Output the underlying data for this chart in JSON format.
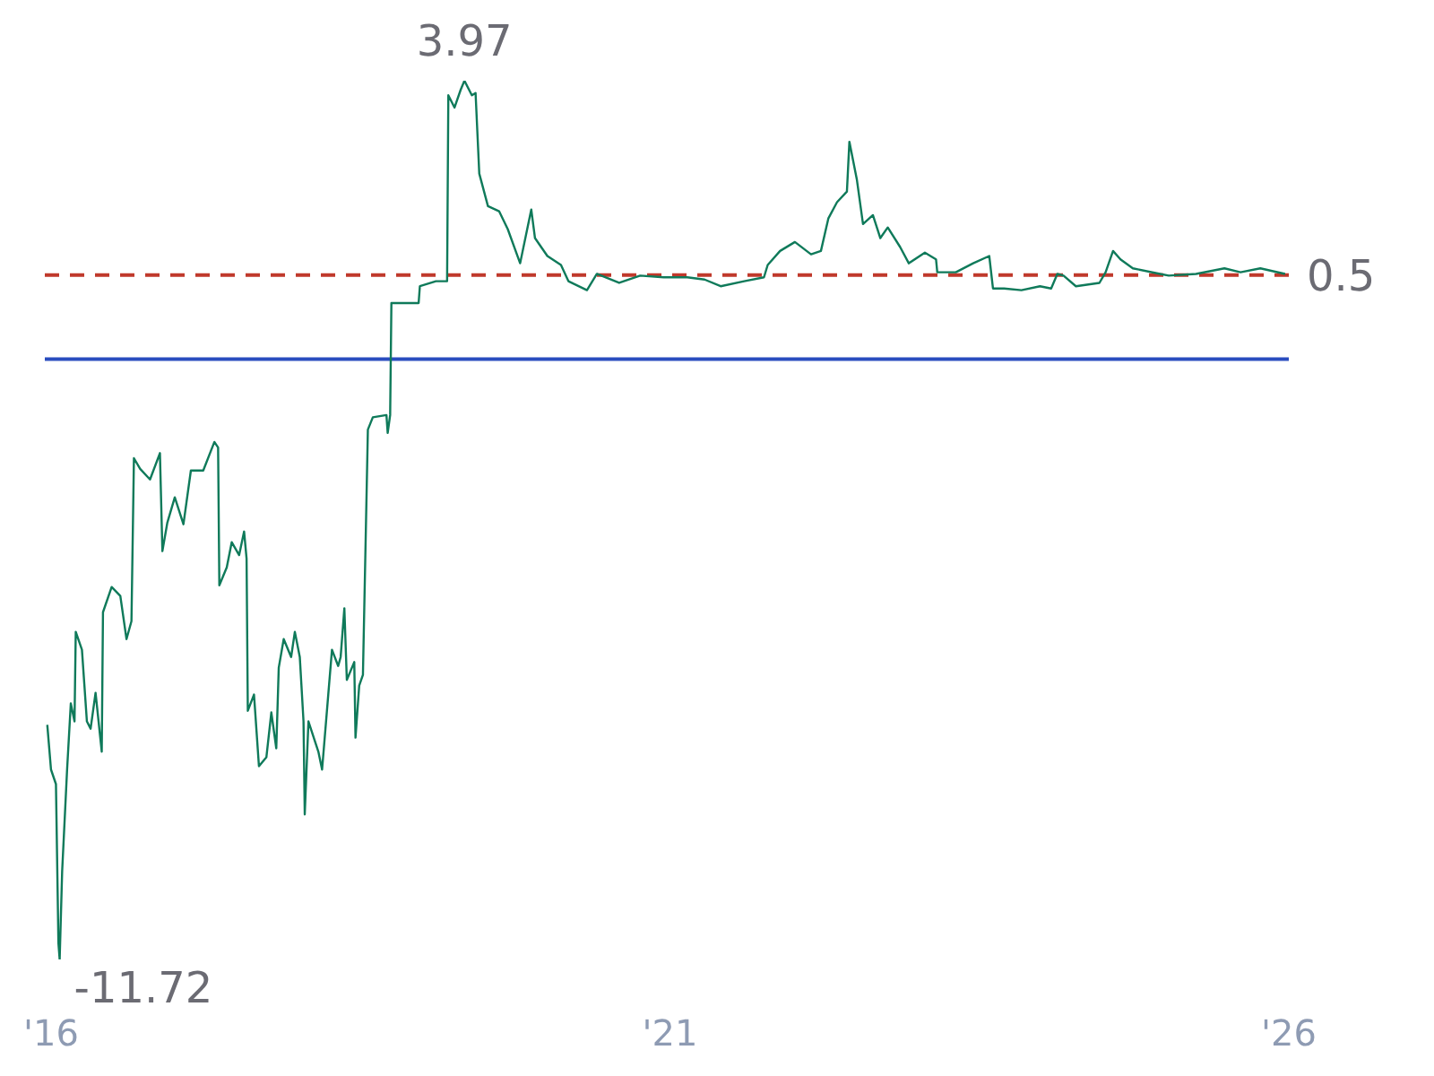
{
  "chart_data": {
    "type": "line",
    "x": [
      2015.97,
      2016.0,
      2016.04,
      2016.06,
      2016.07,
      2016.09,
      2016.13,
      2016.16,
      2016.19,
      2016.2,
      2016.25,
      2016.29,
      2016.32,
      2016.36,
      2016.41,
      2016.42,
      2016.49,
      2016.56,
      2016.61,
      2016.65,
      2016.67,
      2016.72,
      2016.8,
      2016.88,
      2016.9,
      2016.94,
      2017.0,
      2017.07,
      2017.13,
      2017.23,
      2017.32,
      2017.35,
      2017.36,
      2017.42,
      2017.46,
      2017.52,
      2017.56,
      2017.58,
      2017.59,
      2017.64,
      2017.68,
      2017.74,
      2017.78,
      2017.82,
      2017.84,
      2017.88,
      2017.94,
      2017.97,
      2018.01,
      2018.04,
      2018.05,
      2018.08,
      2018.16,
      2018.19,
      2018.24,
      2018.27,
      2018.32,
      2018.34,
      2018.37,
      2018.39,
      2018.45,
      2018.46,
      2018.49,
      2018.52,
      2018.56,
      2018.6,
      2018.71,
      2018.72,
      2018.74,
      2018.75,
      2018.97,
      2018.98,
      2019.11,
      2019.2,
      2019.21,
      2019.26,
      2019.31,
      2019.34,
      2019.4,
      2019.43,
      2019.46,
      2019.53,
      2019.62,
      2019.69,
      2019.79,
      2019.88,
      2019.91,
      2020.01,
      2020.12,
      2020.18,
      2020.33,
      2020.41,
      2020.59,
      2020.76,
      2020.95,
      2021.09,
      2021.14,
      2021.28,
      2021.41,
      2021.6,
      2021.76,
      2021.79,
      2021.89,
      2022.01,
      2022.14,
      2022.22,
      2022.28,
      2022.35,
      2022.43,
      2022.45,
      2022.51,
      2022.56,
      2022.64,
      2022.7,
      2022.76,
      2022.86,
      2022.93,
      2023.06,
      2023.15,
      2023.16,
      2023.31,
      2023.45,
      2023.58,
      2023.61,
      2023.7,
      2023.84,
      2023.99,
      2024.08,
      2024.13,
      2024.18,
      2024.28,
      2024.47,
      2024.52,
      2024.58,
      2024.64,
      2024.74,
      2024.96,
      2025.03,
      2025.25,
      2025.48,
      2025.61,
      2025.77,
      2025.97
    ],
    "series": [
      {
        "color": "#0f7a5a",
        "value_labels": [
          null,
          null,
          null,
          null,
          "-11.72",
          null,
          null,
          null,
          null,
          null,
          null,
          null,
          null,
          null,
          null,
          null,
          null,
          null,
          null,
          null,
          null,
          null,
          null,
          null,
          null,
          null,
          null,
          null,
          null,
          null,
          null,
          null,
          null,
          null,
          null,
          null,
          null,
          null,
          null,
          null,
          null,
          null,
          null,
          null,
          null,
          null,
          null,
          null,
          null,
          null,
          null,
          null,
          null,
          null,
          null,
          null,
          null,
          null,
          null,
          null,
          null,
          null,
          null,
          null,
          null,
          null,
          null,
          null,
          null,
          null,
          null,
          null,
          null,
          null,
          null,
          null,
          null,
          "3.97",
          null,
          null,
          null,
          null,
          null,
          null,
          null,
          null,
          null,
          null,
          null,
          null,
          null,
          null,
          null,
          null,
          null,
          null,
          null,
          null,
          null,
          null,
          null,
          null,
          null,
          null,
          null,
          null,
          null,
          null,
          null,
          null,
          null,
          null,
          null,
          null,
          null,
          null,
          null,
          null,
          null,
          null,
          null,
          null,
          null,
          null,
          null,
          null,
          null,
          null,
          null,
          null,
          null,
          null,
          null,
          null,
          null,
          null,
          null,
          null,
          null,
          null,
          null,
          null,
          null
        ],
        "values": [
          -7.53,
          -8.33,
          -8.59,
          -11.43,
          -11.72,
          -10.15,
          -8.33,
          -7.15,
          -7.47,
          -5.87,
          -6.19,
          -7.47,
          -7.6,
          -6.96,
          -8.01,
          -5.52,
          -5.07,
          -5.23,
          -6.0,
          -5.68,
          -2.77,
          -2.96,
          -3.15,
          -2.68,
          -4.43,
          -3.92,
          -3.47,
          -3.95,
          -2.99,
          -2.99,
          -2.48,
          -2.58,
          -5.04,
          -4.72,
          -4.27,
          -4.5,
          -4.08,
          -4.56,
          -7.28,
          -6.99,
          -8.27,
          -8.11,
          -7.31,
          -7.95,
          -6.51,
          -6.0,
          -6.32,
          -5.87,
          -6.32,
          -7.47,
          -9.13,
          -7.47,
          -8.01,
          -8.33,
          -6.99,
          -6.19,
          -6.48,
          -6.32,
          -5.45,
          -6.73,
          -6.41,
          -7.76,
          -6.83,
          -6.64,
          -2.26,
          -2.04,
          -2.0,
          -2.32,
          -2.0,
          0.0,
          0.0,
          0.3,
          0.39,
          0.39,
          3.71,
          3.49,
          3.81,
          3.97,
          3.71,
          3.75,
          2.31,
          1.73,
          1.64,
          1.32,
          0.71,
          1.67,
          1.16,
          0.84,
          0.68,
          0.39,
          0.23,
          0.52,
          0.36,
          0.49,
          0.46,
          0.46,
          0.46,
          0.42,
          0.3,
          0.39,
          0.46,
          0.68,
          0.93,
          1.09,
          0.87,
          0.93,
          1.51,
          1.8,
          1.99,
          2.88,
          2.21,
          1.41,
          1.57,
          1.16,
          1.35,
          1.0,
          0.71,
          0.9,
          0.78,
          0.55,
          0.55,
          0.71,
          0.84,
          0.26,
          0.26,
          0.23,
          0.3,
          0.26,
          0.52,
          0.49,
          0.3,
          0.36,
          0.55,
          0.93,
          0.78,
          0.62,
          0.52,
          0.49,
          0.52,
          0.62,
          0.55,
          0.62,
          0.52
        ]
      }
    ],
    "xlim": [
      2015.95,
      2026.0
    ],
    "xticks": [
      {
        "value": 2016,
        "label": "'16"
      },
      {
        "value": 2021,
        "label": "'21"
      },
      {
        "value": 2026,
        "label": "'26"
      }
    ],
    "tick_labels": "x",
    "grid": false,
    "marker": "none",
    "line_style": "solid",
    "ref_lines": [
      {
        "axis": "y",
        "value": 0.5,
        "label": "0.5",
        "color": "#c0392b",
        "line_style": "dashed"
      },
      {
        "axis": "y",
        "value": -1,
        "color": "#2a4dbf",
        "line_style": "solid"
      }
    ]
  }
}
